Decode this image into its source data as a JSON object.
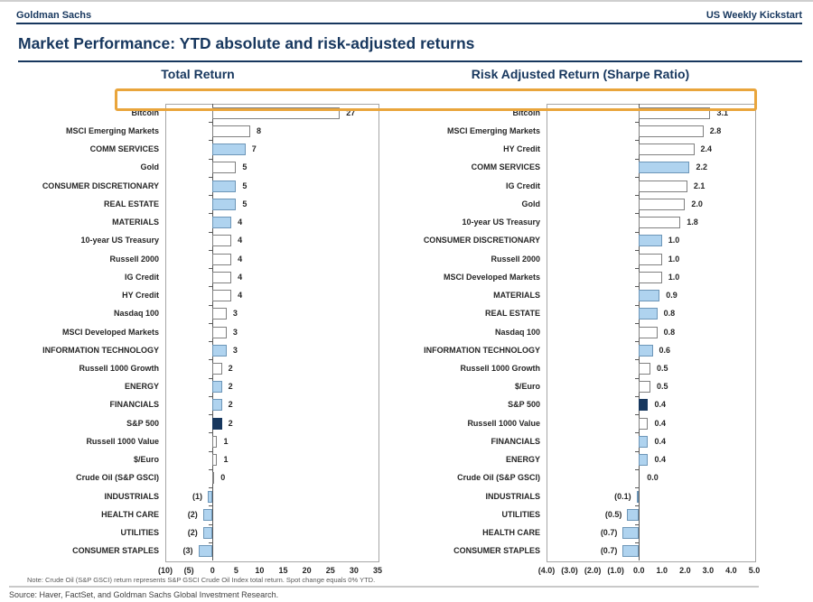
{
  "header": {
    "brand": "Goldman Sachs",
    "publication": "US Weekly Kickstart",
    "title": "Market Performance: YTD absolute and risk-adjusted returns"
  },
  "colors": {
    "navy_text": "#17375E",
    "bar_blue_fill": "#AFD3EF",
    "bar_blue_border": "#6D96B8",
    "bar_white_fill": "#FFFFFF",
    "bar_white_border": "#808080",
    "bar_navy_fill": "#17375E",
    "highlight_border": "#E9A53C"
  },
  "chart_data": [
    {
      "type": "bar",
      "orientation": "horizontal",
      "title": "Total Return",
      "xlim": [
        -10,
        35
      ],
      "grid": false,
      "tick_values": [
        -10,
        -5,
        0,
        5,
        10,
        15,
        20,
        25,
        30,
        35
      ],
      "tick_labels": [
        "(10)",
        "(5)",
        "0",
        "5",
        "10",
        "15",
        "20",
        "25",
        "30",
        "35"
      ],
      "items": [
        {
          "label": "Bitcoin",
          "value": 27,
          "display": "27",
          "style": "white",
          "highlight": true
        },
        {
          "label": "MSCI Emerging Markets",
          "value": 8,
          "display": "8",
          "style": "white"
        },
        {
          "label": "COMM SERVICES",
          "value": 7,
          "display": "7",
          "style": "blue"
        },
        {
          "label": "Gold",
          "value": 5,
          "display": "5",
          "style": "white"
        },
        {
          "label": "CONSUMER DISCRETIONARY",
          "value": 5,
          "display": "5",
          "style": "blue"
        },
        {
          "label": "REAL ESTATE",
          "value": 5,
          "display": "5",
          "style": "blue"
        },
        {
          "label": "MATERIALS",
          "value": 4,
          "display": "4",
          "style": "blue"
        },
        {
          "label": "10-year US Treasury",
          "value": 4,
          "display": "4",
          "style": "white"
        },
        {
          "label": "Russell 2000",
          "value": 4,
          "display": "4",
          "style": "white"
        },
        {
          "label": "IG Credit",
          "value": 4,
          "display": "4",
          "style": "white"
        },
        {
          "label": "HY Credit",
          "value": 4,
          "display": "4",
          "style": "white"
        },
        {
          "label": "Nasdaq 100",
          "value": 3,
          "display": "3",
          "style": "white"
        },
        {
          "label": "MSCI Developed Markets",
          "value": 3,
          "display": "3",
          "style": "white"
        },
        {
          "label": "INFORMATION TECHNOLOGY",
          "value": 3,
          "display": "3",
          "style": "blue"
        },
        {
          "label": "Russell 1000 Growth",
          "value": 2,
          "display": "2",
          "style": "white"
        },
        {
          "label": "ENERGY",
          "value": 2,
          "display": "2",
          "style": "blue"
        },
        {
          "label": "FINANCIALS",
          "value": 2,
          "display": "2",
          "style": "blue"
        },
        {
          "label": "S&P 500",
          "value": 2,
          "display": "2",
          "style": "navy"
        },
        {
          "label": "Russell 1000 Value",
          "value": 1,
          "display": "1",
          "style": "white"
        },
        {
          "label": "$/Euro",
          "value": 1,
          "display": "1",
          "style": "white"
        },
        {
          "label": "Crude Oil (S&P GSCI)",
          "value": 0,
          "display": "0",
          "style": "white"
        },
        {
          "label": "INDUSTRIALS",
          "value": -1,
          "display": "(1)",
          "style": "blue"
        },
        {
          "label": "HEALTH CARE",
          "value": -2,
          "display": "(2)",
          "style": "blue"
        },
        {
          "label": "UTILITIES",
          "value": -2,
          "display": "(2)",
          "style": "blue"
        },
        {
          "label": "CONSUMER STAPLES",
          "value": -3,
          "display": "(3)",
          "style": "blue"
        }
      ]
    },
    {
      "type": "bar",
      "orientation": "horizontal",
      "title": "Risk Adjusted Return (Sharpe Ratio)",
      "xlim": [
        -4,
        5
      ],
      "grid": false,
      "tick_values": [
        -4,
        -3,
        -2,
        -1,
        0,
        1,
        2,
        3,
        4,
        5
      ],
      "tick_labels": [
        "(4.0)",
        "(3.0)",
        "(2.0)",
        "(1.0)",
        "0.0",
        "1.0",
        "2.0",
        "3.0",
        "4.0",
        "5.0"
      ],
      "items": [
        {
          "label": "Bitcoin",
          "value": 3.1,
          "display": "3.1",
          "style": "white",
          "highlight": true
        },
        {
          "label": "MSCI Emerging Markets",
          "value": 2.8,
          "display": "2.8",
          "style": "white"
        },
        {
          "label": "HY Credit",
          "value": 2.4,
          "display": "2.4",
          "style": "white"
        },
        {
          "label": "COMM SERVICES",
          "value": 2.2,
          "display": "2.2",
          "style": "blue"
        },
        {
          "label": "IG Credit",
          "value": 2.1,
          "display": "2.1",
          "style": "white"
        },
        {
          "label": "Gold",
          "value": 2.0,
          "display": "2.0",
          "style": "white"
        },
        {
          "label": "10-year US Treasury",
          "value": 1.8,
          "display": "1.8",
          "style": "white"
        },
        {
          "label": "CONSUMER DISCRETIONARY",
          "value": 1.0,
          "display": "1.0",
          "style": "blue"
        },
        {
          "label": "Russell 2000",
          "value": 1.0,
          "display": "1.0",
          "style": "white"
        },
        {
          "label": "MSCI Developed Markets",
          "value": 1.0,
          "display": "1.0",
          "style": "white"
        },
        {
          "label": "MATERIALS",
          "value": 0.9,
          "display": "0.9",
          "style": "blue"
        },
        {
          "label": "REAL ESTATE",
          "value": 0.8,
          "display": "0.8",
          "style": "blue"
        },
        {
          "label": "Nasdaq 100",
          "value": 0.8,
          "display": "0.8",
          "style": "white"
        },
        {
          "label": "INFORMATION TECHNOLOGY",
          "value": 0.6,
          "display": "0.6",
          "style": "blue"
        },
        {
          "label": "Russell 1000 Growth",
          "value": 0.5,
          "display": "0.5",
          "style": "white"
        },
        {
          "label": "$/Euro",
          "value": 0.5,
          "display": "0.5",
          "style": "white"
        },
        {
          "label": "S&P 500",
          "value": 0.4,
          "display": "0.4",
          "style": "navy"
        },
        {
          "label": "Russell 1000 Value",
          "value": 0.4,
          "display": "0.4",
          "style": "white"
        },
        {
          "label": "FINANCIALS",
          "value": 0.4,
          "display": "0.4",
          "style": "blue"
        },
        {
          "label": "ENERGY",
          "value": 0.4,
          "display": "0.4",
          "style": "blue"
        },
        {
          "label": "Crude Oil (S&P GSCI)",
          "value": 0.0,
          "display": "0.0",
          "style": "white"
        },
        {
          "label": "INDUSTRIALS",
          "value": -0.1,
          "display": "(0.1)",
          "style": "blue"
        },
        {
          "label": "UTILITIES",
          "value": -0.5,
          "display": "(0.5)",
          "style": "blue"
        },
        {
          "label": "HEALTH CARE",
          "value": -0.7,
          "display": "(0.7)",
          "style": "blue"
        },
        {
          "label": "CONSUMER STAPLES",
          "value": -0.7,
          "display": "(0.7)",
          "style": "blue"
        }
      ]
    }
  ],
  "footer": {
    "note": "Note: Crude Oil (S&P GSCI) return represents S&P GSCI Crude Oil Index total return. Spot change equals 0% YTD.",
    "source": "Source: Haver, FactSet, and Goldman Sachs Global Investment Research."
  }
}
